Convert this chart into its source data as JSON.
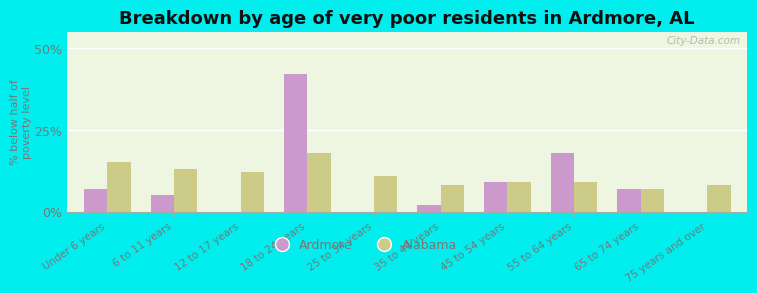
{
  "title": "Breakdown by age of very poor residents in Ardmore, AL",
  "ylabel": "% below half of\npoverty level",
  "categories": [
    "Under 6 years",
    "6 to 11 years",
    "12 to 17 years",
    "18 to 24 years",
    "25 to 34 years",
    "35 to 44 years",
    "45 to 54 years",
    "55 to 64 years",
    "65 to 74 years",
    "75 years and over"
  ],
  "ardmore_values": [
    7,
    5,
    0,
    42,
    0,
    2,
    9,
    18,
    7,
    0
  ],
  "alabama_values": [
    15,
    13,
    12,
    18,
    11,
    8,
    9,
    9,
    7,
    8
  ],
  "ardmore_color": "#cc99cc",
  "alabama_color": "#cccc88",
  "background_color": "#00eeee",
  "plot_bg_color": "#eef5e0",
  "title_fontsize": 13,
  "bar_width": 0.35,
  "ylim": [
    0,
    55
  ],
  "yticks": [
    0,
    25,
    50
  ],
  "ytick_labels": [
    "0%",
    "25%",
    "50%"
  ],
  "watermark": "City-Data.com",
  "label_color": "#777777"
}
